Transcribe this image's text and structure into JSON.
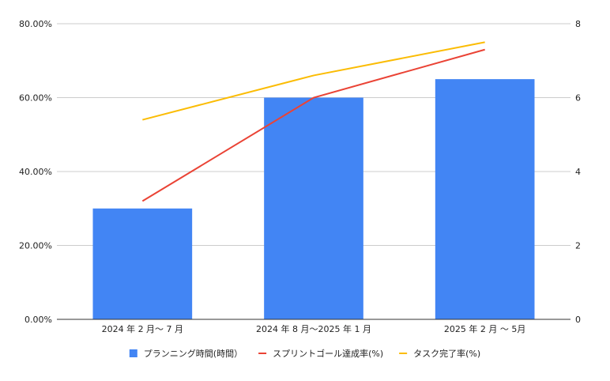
{
  "chart_data": {
    "type": "bar",
    "categories": [
      "2024 年 2 月〜 7 月",
      "2024 年 8 月〜2025 年 1 月",
      "2025 年 2 月 〜 5月"
    ],
    "left_axis": {
      "ylim": [
        0,
        80
      ],
      "ticks": [
        0,
        20,
        40,
        60,
        80
      ],
      "tick_labels": [
        "0.00%",
        "20.00%",
        "40.00%",
        "60.00%",
        "80.00%"
      ]
    },
    "right_axis": {
      "ylim": [
        0,
        8
      ],
      "ticks": [
        0,
        2,
        4,
        6,
        8
      ],
      "tick_labels": [
        "0",
        "2",
        "4",
        "6",
        "8"
      ]
    },
    "grid": true,
    "legend_position": "bottom",
    "series": [
      {
        "name": "プランニング時間(時間）",
        "type": "bar",
        "axis": "right",
        "color": "#4285f4",
        "values": [
          3.0,
          6.0,
          6.5
        ]
      },
      {
        "name": "スプリントゴール達成率(%)",
        "type": "line",
        "axis": "left",
        "color": "#ea4335",
        "values": [
          32,
          60,
          73
        ]
      },
      {
        "name": "タスク完了率(%)",
        "type": "line",
        "axis": "left",
        "color": "#fbbc04",
        "values": [
          54,
          66,
          75
        ]
      }
    ]
  }
}
